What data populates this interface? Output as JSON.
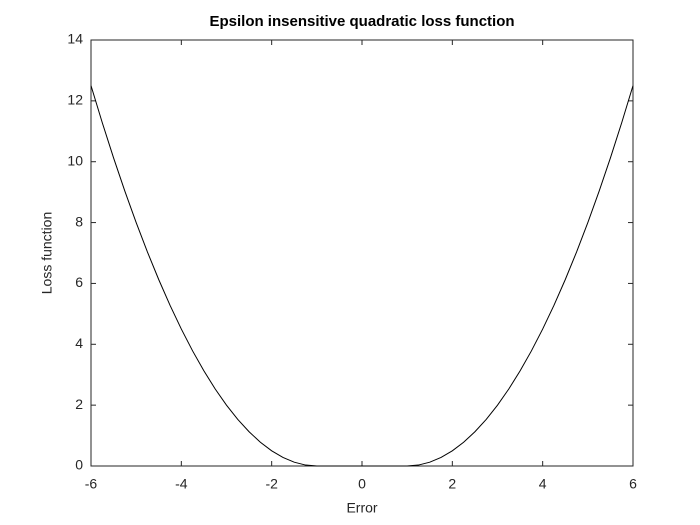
{
  "chart_data": {
    "type": "line",
    "title": "Epsilon insensitive quadratic loss function",
    "x_label": "Error",
    "y_label": "Loss function",
    "x": [
      -6,
      -5.75,
      -5.5,
      -5.25,
      -5,
      -4.75,
      -4.5,
      -4.25,
      -4,
      -3.75,
      -3.5,
      -3.25,
      -3,
      -2.75,
      -2.5,
      -2.25,
      -2,
      -1.75,
      -1.5,
      -1.25,
      -1,
      -0.75,
      -0.5,
      -0.25,
      0,
      0.25,
      0.5,
      0.75,
      1,
      1.25,
      1.5,
      1.75,
      2,
      2.25,
      2.5,
      2.75,
      3,
      3.25,
      3.5,
      3.75,
      4,
      4.25,
      4.5,
      4.75,
      5,
      5.25,
      5.5,
      5.75,
      6
    ],
    "values": [
      12.5,
      11.28125,
      10.125,
      9.03125,
      8,
      7.03125,
      6.125,
      5.28125,
      4.5,
      3.78125,
      3.125,
      2.53125,
      2,
      1.53125,
      1.125,
      0.78125,
      0.5,
      0.28125,
      0.125,
      0.03125,
      0,
      0,
      0,
      0,
      0,
      0,
      0,
      0,
      0,
      0.03125,
      0.125,
      0.28125,
      0.5,
      0.78125,
      1.125,
      1.53125,
      2,
      2.53125,
      3.125,
      3.78125,
      4.5,
      5.28125,
      6.125,
      7.03125,
      8,
      9.03125,
      10.125,
      11.28125,
      12.5
    ],
    "color": "#000000",
    "xlim": [
      -6,
      6
    ],
    "ylim": [
      0,
      14
    ],
    "xticks": [
      -6,
      -4,
      -2,
      0,
      2,
      4,
      6
    ],
    "yticks": [
      0,
      2,
      4,
      6,
      8,
      10,
      12,
      14
    ]
  }
}
